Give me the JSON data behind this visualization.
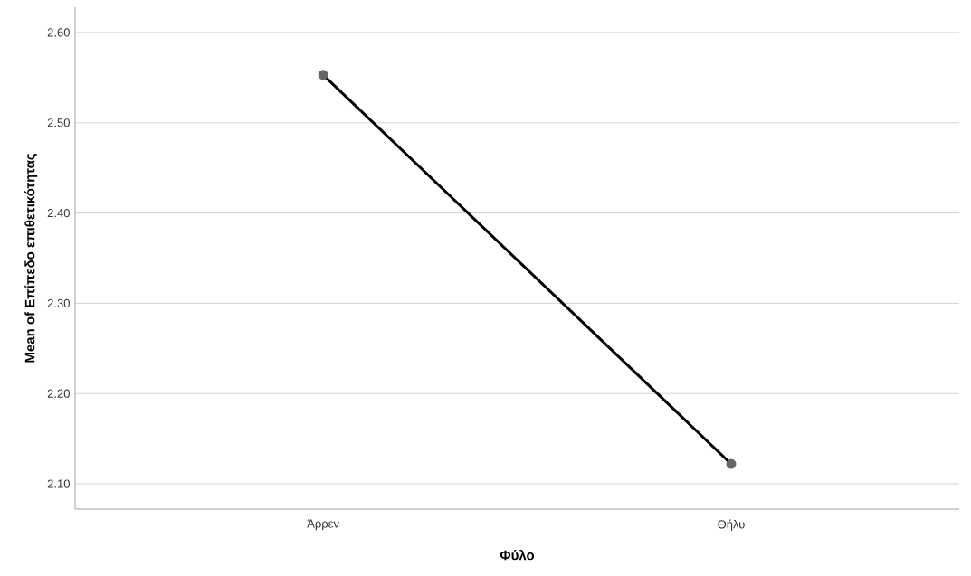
{
  "chart_data": {
    "type": "line",
    "xlabel": "Φύλο",
    "ylabel": "Mean of Επίπεδο επιθετικότητας",
    "categories": [
      "Άρρεν",
      "Θήλυ"
    ],
    "series": [
      {
        "color": "#000000",
        "values": [
          2.553,
          2.122
        ]
      }
    ],
    "ylim": [
      2.072,
      2.628
    ],
    "yticks": [
      {
        "value": 2.1,
        "label": "2.10"
      },
      {
        "value": 2.2,
        "label": "2.20"
      },
      {
        "value": 2.3,
        "label": "2.30"
      },
      {
        "value": 2.4,
        "label": "2.40"
      },
      {
        "value": 2.5,
        "label": "2.50"
      },
      {
        "value": 2.6,
        "label": "2.60"
      }
    ],
    "grid": "y",
    "marker": "circle"
  }
}
